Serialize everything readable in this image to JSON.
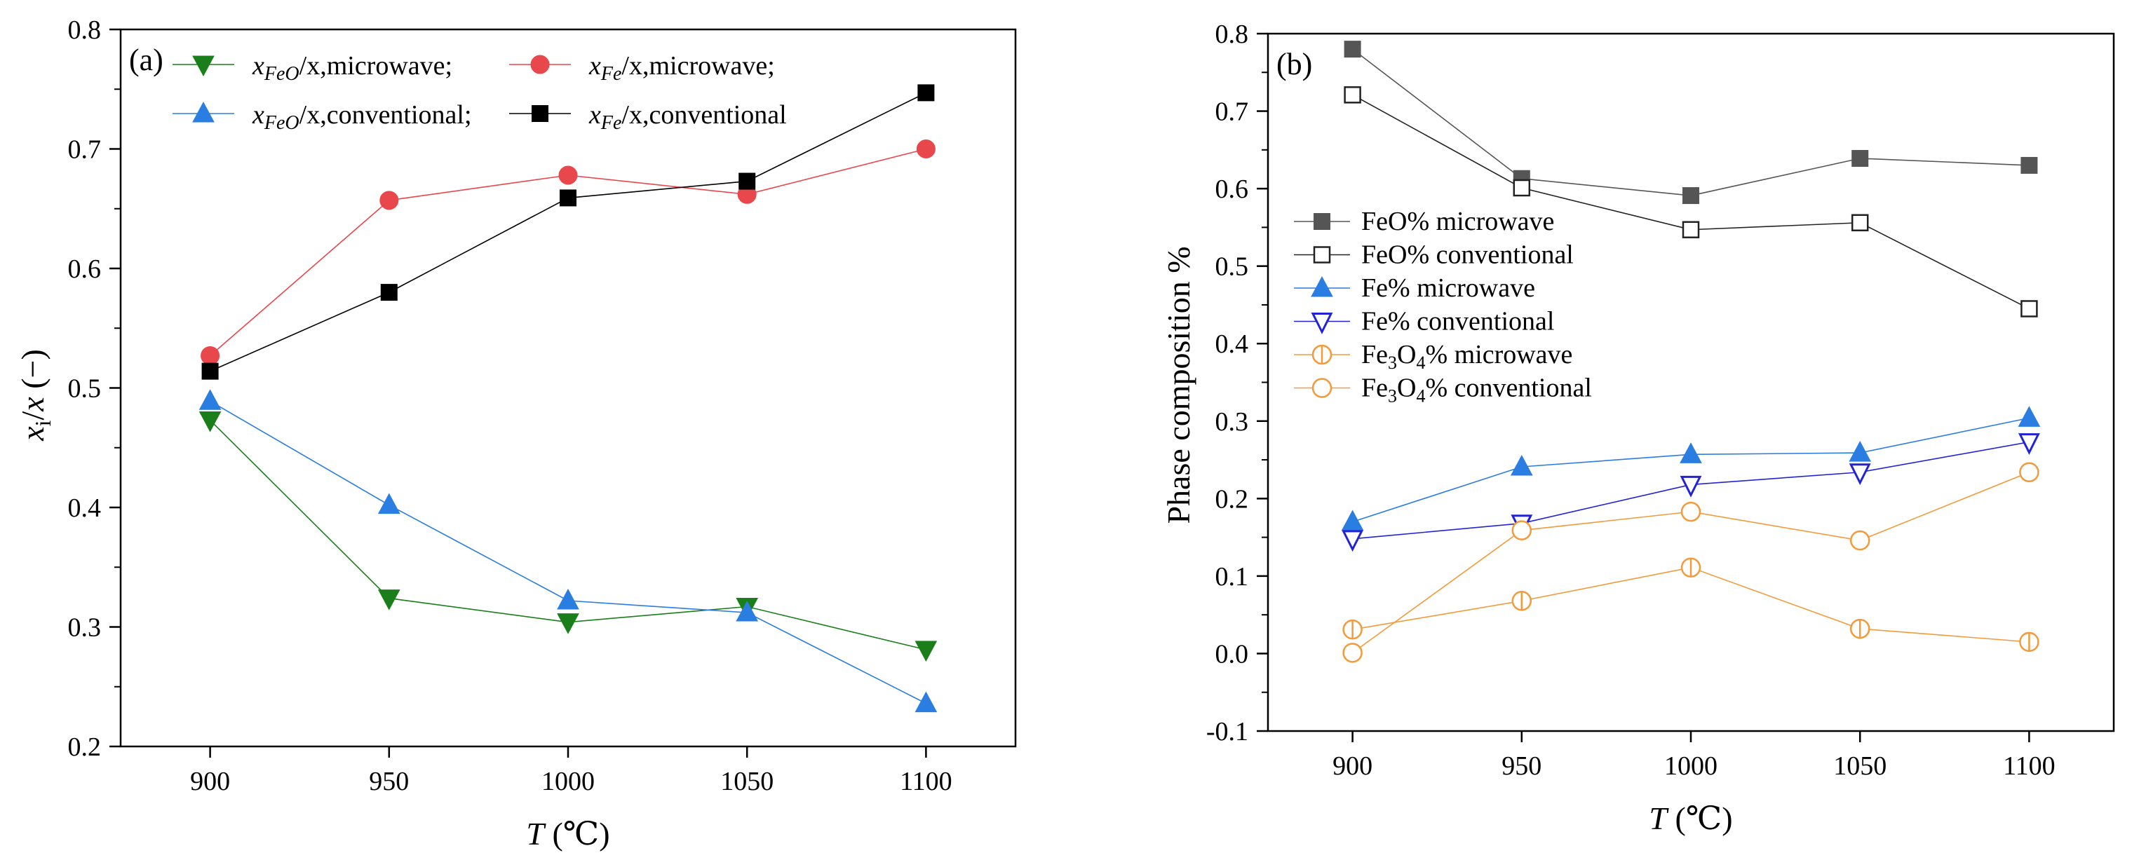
{
  "chart_data": [
    {
      "panel_label": "(a)",
      "type": "line",
      "x": [
        900,
        950,
        1000,
        1050,
        1100
      ],
      "xlim": [
        875,
        1125
      ],
      "ylim": [
        0.2,
        0.8
      ],
      "xticks": [
        "900",
        "950",
        "1000",
        "1050",
        "1100"
      ],
      "yticks": [
        "0.2",
        "0.3",
        "0.4",
        "0.5",
        "0.6",
        "0.7",
        "0.8"
      ],
      "xlabel": {
        "var": "T",
        "unit": " (℃)"
      },
      "ylabel": {
        "var": "x",
        "sub": "i",
        "rest": "/",
        "var2": "x",
        "unit": " (−)"
      },
      "series": [
        {
          "name": "x_FeO/x,microwave;",
          "legend_var": "x",
          "legend_sub": "FeO",
          "legend_rest": "/x,microwave;",
          "marker": "triangle-down",
          "color": "#1a7f1a",
          "values": [
            0.473,
            0.324,
            0.304,
            0.317,
            0.281
          ]
        },
        {
          "name": "x_Fe/x,microwave;",
          "legend_var": "x",
          "legend_sub": "Fe",
          "legend_rest": "/x,microwave;",
          "marker": "circle",
          "color": "#e8474c",
          "values": [
            0.527,
            0.657,
            0.678,
            0.662,
            0.7
          ]
        },
        {
          "name": "x_FeO/x,conventional;",
          "legend_var": "x",
          "legend_sub": "FeO",
          "legend_rest": "/x,conventional;",
          "marker": "triangle-up",
          "color": "#2a7de1",
          "values": [
            0.489,
            0.402,
            0.322,
            0.312,
            0.236
          ]
        },
        {
          "name": "x_Fe/x,conventional",
          "legend_var": "x",
          "legend_sub": "Fe",
          "legend_rest": "/x,conventional",
          "marker": "square",
          "color": "#000000",
          "values": [
            0.514,
            0.58,
            0.659,
            0.673,
            0.747
          ]
        }
      ]
    },
    {
      "panel_label": "(b)",
      "type": "line",
      "x": [
        900,
        950,
        1000,
        1050,
        1100
      ],
      "xlim": [
        875,
        1125
      ],
      "ylim": [
        -0.1,
        0.8
      ],
      "xticks": [
        "900",
        "950",
        "1000",
        "1050",
        "1100"
      ],
      "yticks": [
        "-0.1",
        "0.0",
        "0.1",
        "0.2",
        "0.3",
        "0.4",
        "0.5",
        "0.6",
        "0.7",
        "0.8"
      ],
      "xlabel": {
        "var": "T",
        "unit": " (℃)"
      },
      "ylabel": "Phase composition %",
      "series": [
        {
          "name": "FeO% microwave",
          "marker": "square-filled",
          "color": "#555555",
          "values": [
            0.78,
            0.613,
            0.591,
            0.639,
            0.63
          ]
        },
        {
          "name": "FeO% conventional",
          "marker": "square-open",
          "color": "#222222",
          "values": [
            0.721,
            0.601,
            0.547,
            0.556,
            0.445
          ]
        },
        {
          "name": "Fe% microwave",
          "marker": "triangle-up-filled",
          "color": "#2a7de1",
          "values": [
            0.17,
            0.241,
            0.257,
            0.259,
            0.304
          ]
        },
        {
          "name": "Fe% conventional",
          "marker": "triangle-down-open",
          "color": "#2323d6",
          "values": [
            0.148,
            0.168,
            0.218,
            0.234,
            0.273
          ]
        },
        {
          "name": "Fe3O4% microwave",
          "legend_html": [
            "Fe",
            "3",
            "O",
            "4",
            "% microwave"
          ],
          "marker": "circle-bar",
          "color": "#f39a3b",
          "values": [
            0.031,
            0.068,
            0.111,
            0.032,
            0.015
          ]
        },
        {
          "name": "Fe3O4% conventional",
          "legend_html": [
            "Fe",
            "3",
            "O",
            "4",
            "% conventional"
          ],
          "marker": "circle-open",
          "color": "#f39a3b",
          "values": [
            0.001,
            0.159,
            0.183,
            0.146,
            0.234
          ]
        }
      ]
    }
  ]
}
